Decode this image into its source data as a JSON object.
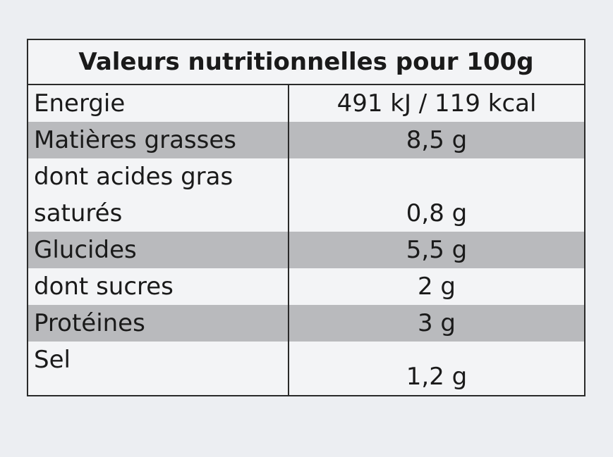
{
  "table": {
    "title": "Valeurs nutritionnelles pour 100g",
    "rows": [
      [
        "Energie",
        "491 kJ / 119 kcal"
      ],
      [
        "Matières grasses",
        "8,5 g"
      ],
      [
        "dont acides gras saturés",
        "0,8 g"
      ],
      [
        "Glucides",
        "5,5 g"
      ],
      [
        "dont sucres",
        "2 g"
      ],
      [
        "Protéines",
        "3 g"
      ],
      [
        "Sel",
        "1,2 g"
      ]
    ]
  }
}
